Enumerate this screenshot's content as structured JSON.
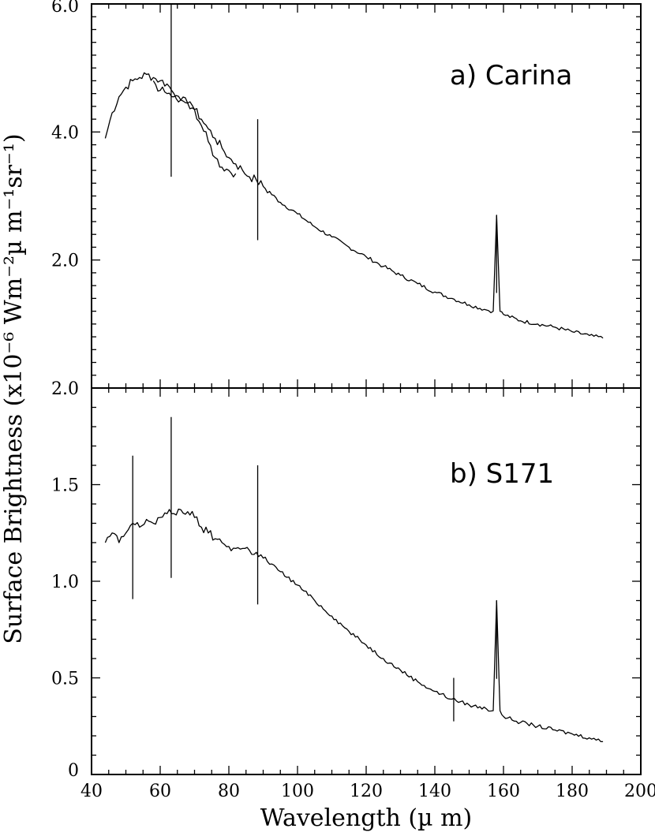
{
  "chart_data": [
    {
      "type": "line",
      "panel_label": "a) Carina",
      "xlabel": "Wavelength (µ m)",
      "ylabel": "Surface Brightness (x10⁻⁶ Wm⁻²µ m⁻¹sr⁻¹)",
      "xlim": [
        40,
        200
      ],
      "ylim": [
        0,
        6
      ],
      "y_ticks": [
        "2.0",
        "4.0",
        "6.0"
      ],
      "y_tick_values": [
        2,
        4,
        6
      ],
      "lines": [
        {
          "x": 158.0,
          "peak": 2.7
        },
        {
          "x": 63.2,
          "peak": 6.0
        },
        {
          "x": 88.4,
          "peak": 4.2
        }
      ],
      "series": [
        {
          "x": [
            44,
            46,
            48,
            50,
            52,
            54,
            56,
            58,
            60,
            62,
            64,
            66,
            68,
            70,
            72,
            74,
            76,
            78,
            80,
            82,
            84,
            86,
            88,
            90,
            95,
            100,
            105,
            110,
            115,
            120,
            125,
            130,
            135,
            140,
            145,
            150,
            155,
            157,
            158,
            159,
            160,
            165,
            170,
            175,
            180,
            185,
            189
          ],
          "y": [
            3.9,
            4.3,
            4.55,
            4.7,
            4.8,
            4.85,
            4.9,
            4.85,
            4.8,
            4.75,
            4.6,
            4.5,
            4.45,
            4.35,
            4.2,
            4.05,
            3.9,
            3.75,
            3.6,
            3.5,
            3.4,
            3.3,
            3.25,
            3.15,
            2.9,
            2.72,
            2.52,
            2.36,
            2.2,
            2.05,
            1.9,
            1.76,
            1.63,
            1.5,
            1.4,
            1.3,
            1.22,
            1.2,
            2.7,
            1.2,
            1.15,
            1.05,
            1.0,
            0.95,
            0.88,
            0.82,
            0.78
          ]
        },
        {
          "x": [
            58,
            60,
            62,
            64,
            66,
            68,
            70,
            72,
            74,
            76,
            78,
            80,
            82
          ],
          "y": [
            4.8,
            4.65,
            4.6,
            4.55,
            4.5,
            4.45,
            4.35,
            4.1,
            3.85,
            3.6,
            3.45,
            3.4,
            3.35
          ]
        }
      ]
    },
    {
      "type": "line",
      "panel_label": "b) S171",
      "xlabel": "Wavelength (µ m)",
      "ylabel": "Surface Brightness (x10⁻⁶ Wm⁻²µ m⁻¹sr⁻¹)",
      "xlim": [
        40,
        200
      ],
      "ylim": [
        0,
        2
      ],
      "x_ticks": [
        "40",
        "60",
        "80",
        "100",
        "120",
        "140",
        "160",
        "180",
        "200"
      ],
      "x_tick_values": [
        40,
        60,
        80,
        100,
        120,
        140,
        160,
        180,
        200
      ],
      "y_ticks": [
        "0",
        "0.5",
        "1.0",
        "1.5",
        "2.0"
      ],
      "y_tick_values": [
        0,
        0.5,
        1.0,
        1.5,
        2.0
      ],
      "lines": [
        {
          "x": 52.0,
          "peak": 1.65
        },
        {
          "x": 63.2,
          "peak": 1.85
        },
        {
          "x": 88.4,
          "peak": 1.6
        },
        {
          "x": 145.5,
          "peak": 0.5
        },
        {
          "x": 158.0,
          "peak": 0.9
        }
      ],
      "series": [
        {
          "x": [
            44,
            46,
            48,
            50,
            52,
            54,
            56,
            58,
            60,
            62,
            64,
            66,
            68,
            70,
            72,
            74,
            76,
            78,
            80,
            82,
            84,
            86,
            88,
            90,
            95,
            100,
            105,
            110,
            115,
            120,
            125,
            130,
            135,
            140,
            145,
            150,
            155,
            157,
            158,
            159,
            160,
            165,
            170,
            175,
            180,
            185,
            189
          ],
          "y": [
            1.2,
            1.25,
            1.2,
            1.25,
            1.3,
            1.28,
            1.32,
            1.3,
            1.33,
            1.35,
            1.35,
            1.37,
            1.36,
            1.33,
            1.28,
            1.25,
            1.22,
            1.2,
            1.18,
            1.17,
            1.17,
            1.16,
            1.15,
            1.12,
            1.05,
            0.98,
            0.9,
            0.82,
            0.74,
            0.67,
            0.6,
            0.54,
            0.48,
            0.43,
            0.39,
            0.36,
            0.34,
            0.33,
            0.9,
            0.33,
            0.3,
            0.27,
            0.25,
            0.23,
            0.21,
            0.19,
            0.17
          ]
        }
      ]
    }
  ]
}
